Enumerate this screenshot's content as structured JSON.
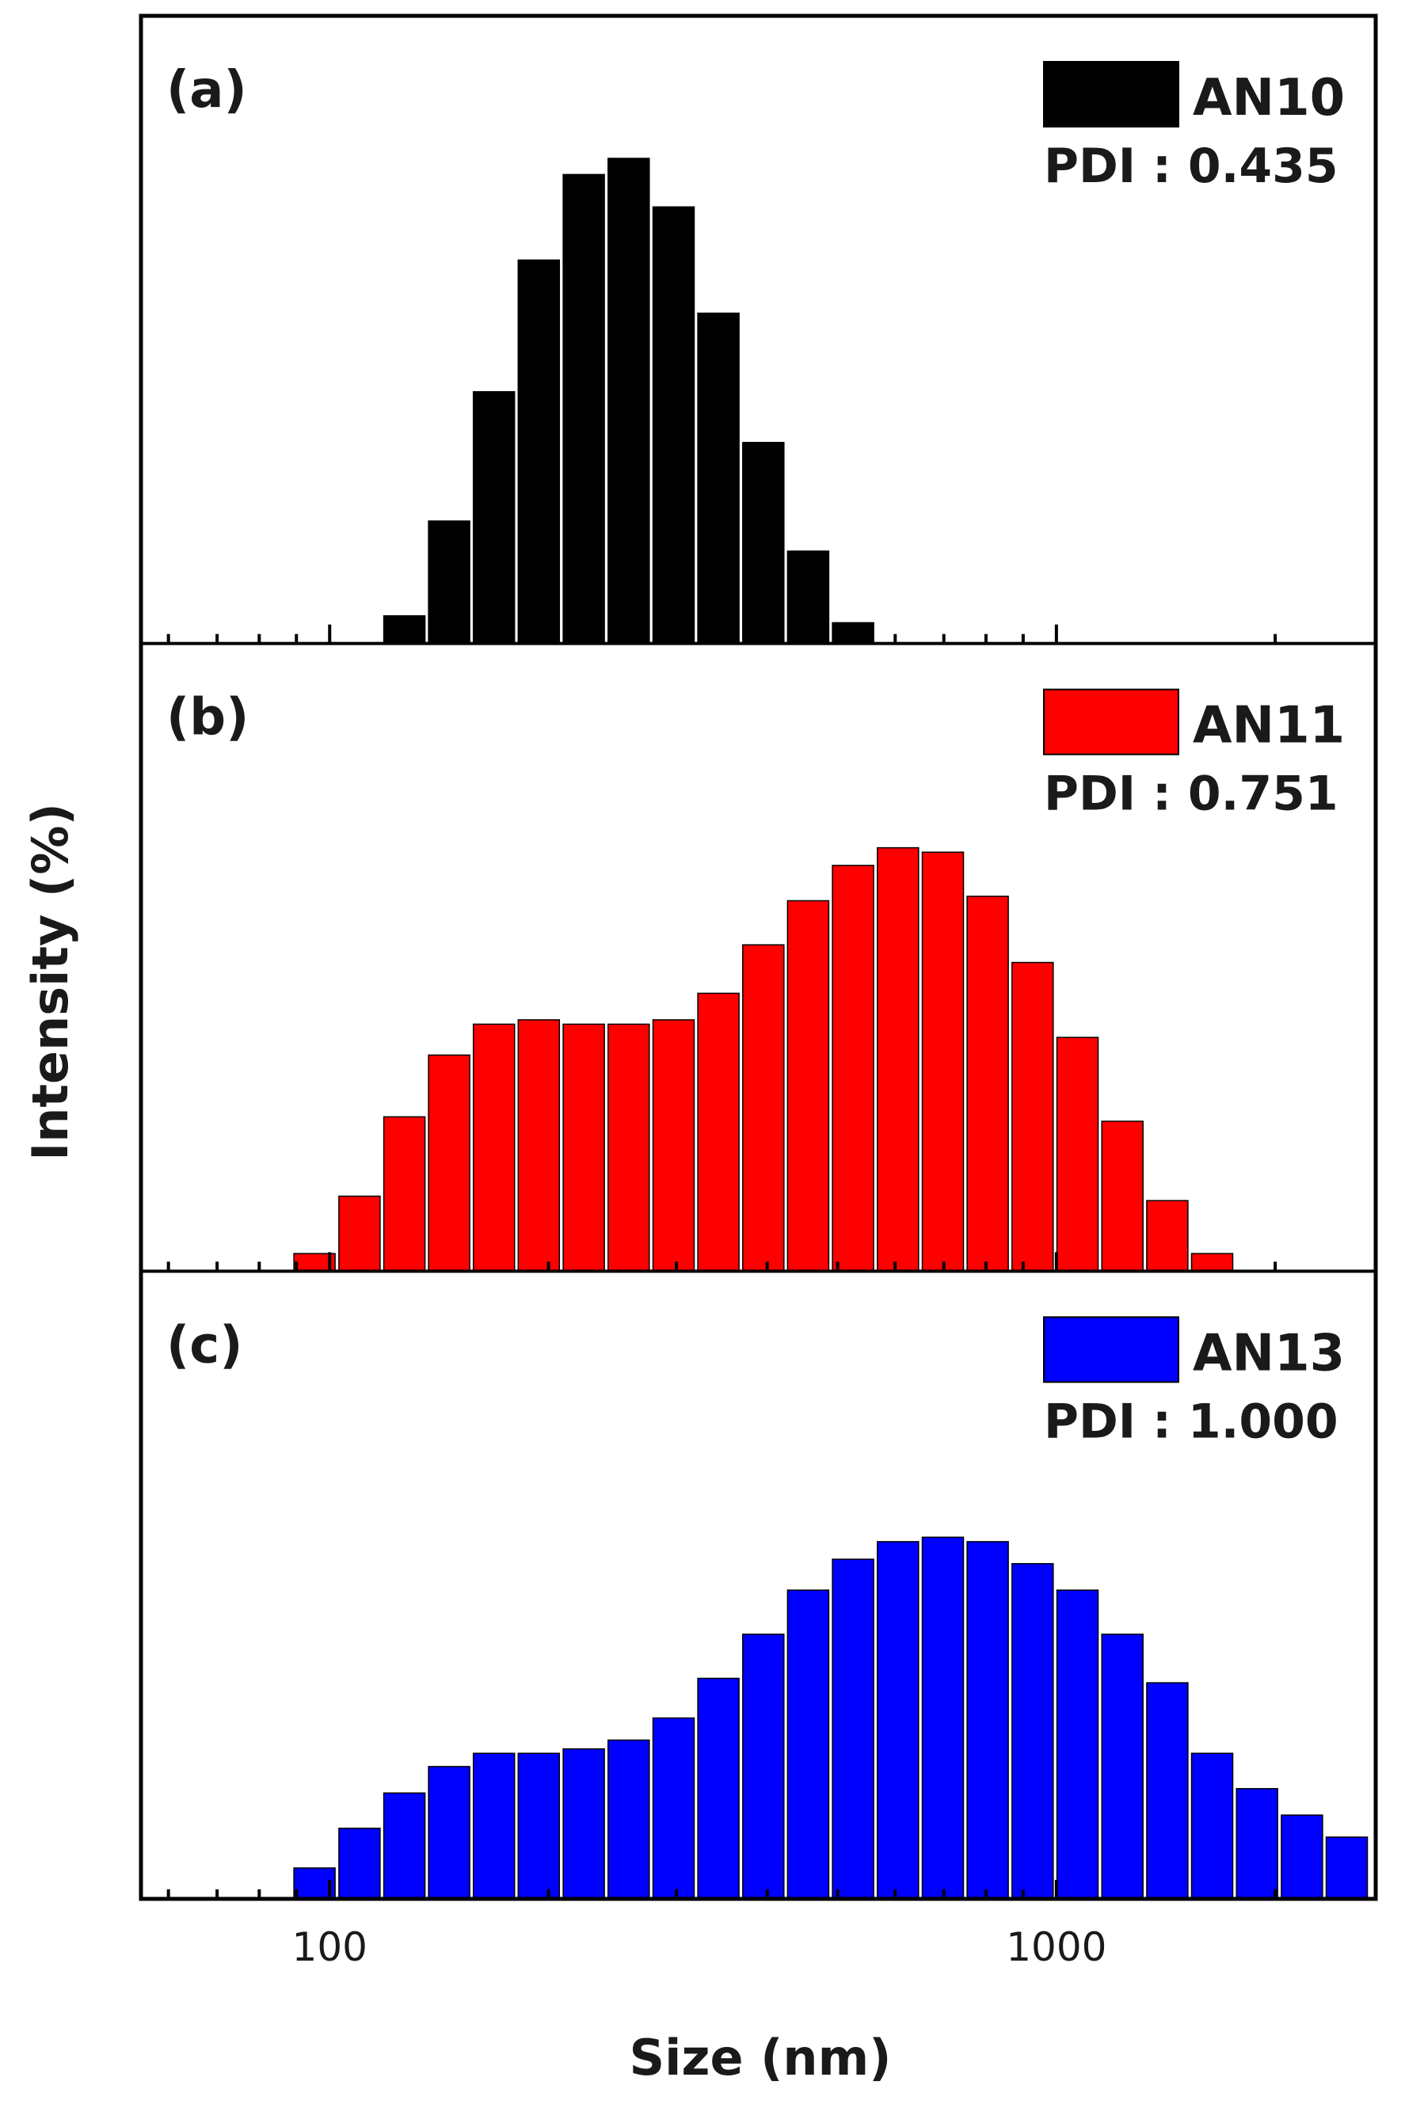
{
  "figure": {
    "ylabel": "Intensity (%)",
    "xlabel": "Size (nm)",
    "xscale": "log",
    "xlim": [
      55,
      2750
    ],
    "xticks": [
      {
        "value": 100,
        "label": "100"
      },
      {
        "value": 1000,
        "label": "1000"
      }
    ]
  },
  "chart_data": [
    {
      "type": "bar",
      "panel_label": "(a)",
      "legend": "AN10",
      "pdi": "PDI : 0.435",
      "color": "#000000",
      "xscale": "log",
      "ylim": [
        0,
        21
      ],
      "x": [
        126.7,
        146.0,
        168.3,
        194.0,
        223.7,
        257.9,
        297.3,
        342.7,
        395.1,
        455.4,
        525.0,
        605.3
      ],
      "values": [
        1.2,
        5.3,
        10.9,
        16.6,
        20.3,
        21.0,
        18.9,
        14.3,
        8.7,
        4.0,
        0.9,
        0.0
      ]
    },
    {
      "type": "bar",
      "panel_label": "(b)",
      "legend": "AN11",
      "pdi": "PDI : 0.751",
      "color": "#ff0000",
      "xscale": "log",
      "ylim": [
        0,
        11
      ],
      "x": [
        95.3,
        109.9,
        126.7,
        146.0,
        168.3,
        194.0,
        223.7,
        257.9,
        297.3,
        342.7,
        395.1,
        455.4,
        525.0,
        605.3,
        697.8,
        804.4,
        927.3,
        1069.1,
        1232.5,
        1420.9,
        1638.0,
        1888.3
      ],
      "values": [
        0.4,
        1.7,
        3.5,
        4.9,
        5.6,
        5.7,
        5.6,
        5.6,
        5.7,
        6.3,
        7.4,
        8.4,
        9.2,
        9.6,
        9.5,
        8.5,
        7.0,
        5.3,
        3.4,
        1.6,
        0.4,
        0.0
      ]
    },
    {
      "type": "bar",
      "panel_label": "(c)",
      "legend": "AN13",
      "pdi": "PDI : 1.000",
      "color": "#0000ff",
      "xscale": "log",
      "ylim": [
        0,
        11
      ],
      "x": [
        95.3,
        109.9,
        126.7,
        146.0,
        168.3,
        194.0,
        223.7,
        257.9,
        297.3,
        342.7,
        395.1,
        455.4,
        525.0,
        605.3,
        697.8,
        804.4,
        927.3,
        1069.1,
        1232.5,
        1420.9,
        1638.0,
        1888.3,
        2177.0,
        2509.6
      ],
      "values": [
        0.7,
        1.6,
        2.4,
        3.0,
        3.3,
        3.3,
        3.4,
        3.6,
        4.1,
        5.0,
        6.0,
        7.0,
        7.7,
        8.1,
        8.2,
        8.1,
        7.6,
        7.0,
        6.0,
        4.9,
        3.3,
        2.5,
        1.9,
        1.4
      ]
    }
  ]
}
